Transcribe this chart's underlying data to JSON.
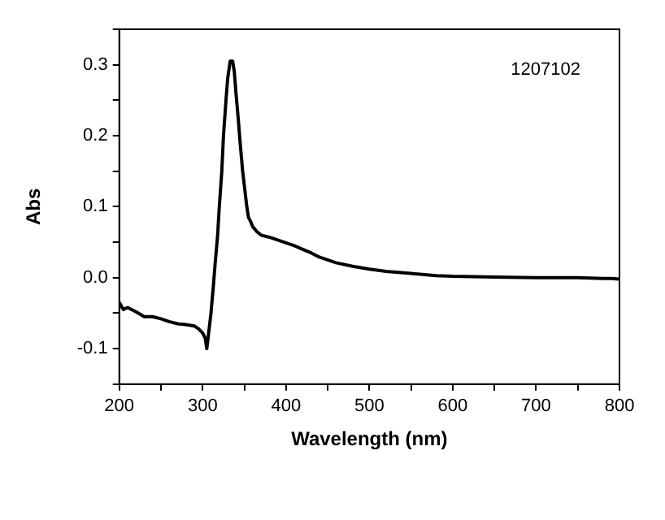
{
  "chart_data": {
    "type": "line",
    "xlabel": "Wavelength (nm)",
    "ylabel": "Abs",
    "annotations": [
      "1207102"
    ],
    "x": [
      200,
      205,
      210,
      220,
      230,
      240,
      250,
      260,
      270,
      280,
      290,
      295,
      300,
      303,
      305,
      307,
      310,
      313,
      315,
      318,
      320,
      323,
      325,
      328,
      330,
      333,
      336,
      338,
      340,
      343,
      345,
      348,
      350,
      353,
      355,
      358,
      360,
      365,
      370,
      380,
      390,
      400,
      410,
      420,
      430,
      440,
      450,
      460,
      480,
      500,
      520,
      550,
      580,
      600,
      650,
      700,
      750,
      780,
      790,
      800
    ],
    "series": [
      {
        "color": "#000000",
        "values": [
          -0.035,
          -0.045,
          -0.042,
          -0.048,
          -0.055,
          -0.055,
          -0.058,
          -0.062,
          -0.065,
          -0.066,
          -0.068,
          -0.072,
          -0.078,
          -0.085,
          -0.1,
          -0.08,
          -0.05,
          -0.01,
          0.02,
          0.06,
          0.1,
          0.15,
          0.2,
          0.25,
          0.28,
          0.305,
          0.305,
          0.29,
          0.26,
          0.22,
          0.19,
          0.15,
          0.13,
          0.1,
          0.085,
          0.078,
          0.072,
          0.065,
          0.06,
          0.057,
          0.053,
          0.049,
          0.045,
          0.04,
          0.035,
          0.029,
          0.025,
          0.021,
          0.016,
          0.012,
          0.009,
          0.006,
          0.003,
          0.002,
          0.001,
          0.0,
          0.0,
          -0.001,
          -0.001,
          -0.002
        ]
      }
    ],
    "xlim": [
      200,
      800
    ],
    "ylim": [
      -0.15,
      0.35
    ],
    "xticks": [
      200,
      {
        "value": 250,
        "label": null
      },
      300,
      {
        "value": 350,
        "label": null
      },
      400,
      {
        "value": 450,
        "label": null
      },
      500,
      {
        "value": 550,
        "label": null
      },
      600,
      {
        "value": 650,
        "label": null
      },
      700,
      {
        "value": 750,
        "label": null
      },
      800
    ],
    "yticks": [
      {
        "value": -0.15,
        "label": null
      },
      -0.1,
      {
        "value": -0.05,
        "label": null
      },
      {
        "value": 0,
        "label": "0.0"
      },
      {
        "value": 0.05,
        "label": null
      },
      0.1,
      {
        "value": 0.15,
        "label": null
      },
      0.2,
      {
        "value": 0.25,
        "label": null
      },
      0.3,
      {
        "value": 0.35,
        "label": null
      }
    ],
    "grid": false,
    "legend": false,
    "marker": "none",
    "line_style": "solid"
  }
}
